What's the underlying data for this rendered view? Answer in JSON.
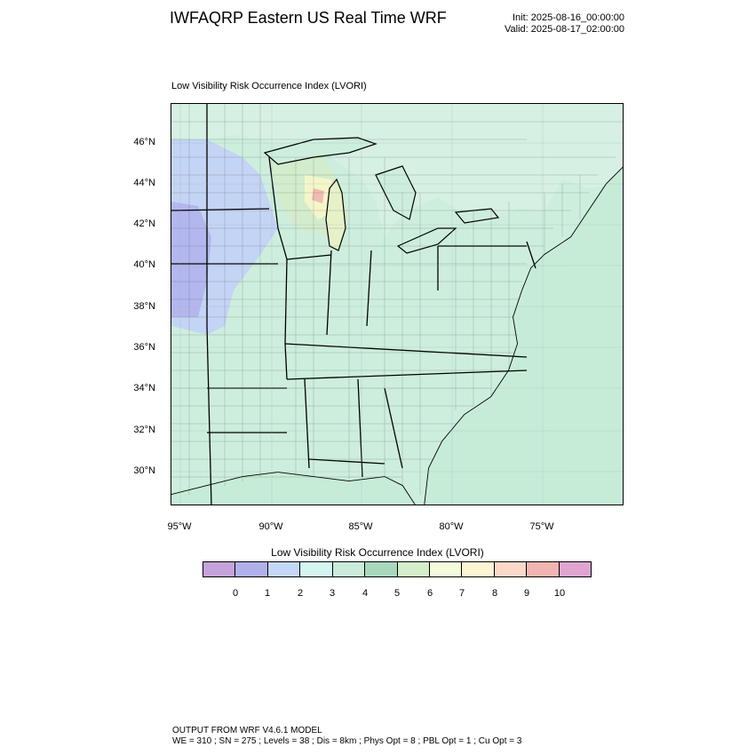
{
  "header": {
    "title": "IWFAQRP Eastern US Real Time WRF",
    "init": "Init: 2025-08-16_00:00:00",
    "valid": "Valid: 2025-08-17_02:00:00"
  },
  "plot": {
    "title": "Low Visibility Risk Occurrence Index   (LVORI)"
  },
  "map": {
    "lat_labels": [
      "46°N",
      "44°N",
      "42°N",
      "40°N",
      "38°N",
      "36°N",
      "34°N",
      "32°N",
      "30°N"
    ],
    "lon_labels": [
      "95°W",
      "90°W",
      "85°W",
      "80°W",
      "75°W"
    ],
    "colors": {
      "background": "#cdeedd",
      "low_blue": "#c4d4f4",
      "lavender": "#b3b7ee",
      "yellow": "#f4f6c9",
      "green": "#d3eccc",
      "pink": "#f1bcb4",
      "land_lines": "#000000"
    }
  },
  "colorbar": {
    "title": "Low Visibility Risk Occurrence Index  (LVORI)",
    "labels": [
      "0",
      "1",
      "2",
      "3",
      "4",
      "5",
      "6",
      "7",
      "8",
      "9",
      "10"
    ],
    "colors": [
      "#c4a3db",
      "#b1b0eb",
      "#c4d7f7",
      "#d4f6f0",
      "#c9ecdb",
      "#a8d8bb",
      "#d3eec8",
      "#f4fbdd",
      "#fdf4d4",
      "#fdd8c9",
      "#f1b5b1",
      "#dea5d1"
    ]
  },
  "footer": {
    "line1": "OUTPUT FROM WRF V4.6.1 MODEL",
    "line2": "WE = 310 ; SN = 275 ; Levels = 38 ; Dis = 8km ; Phys Opt = 8 ; PBL Opt = 1 ; Cu Opt = 3"
  }
}
